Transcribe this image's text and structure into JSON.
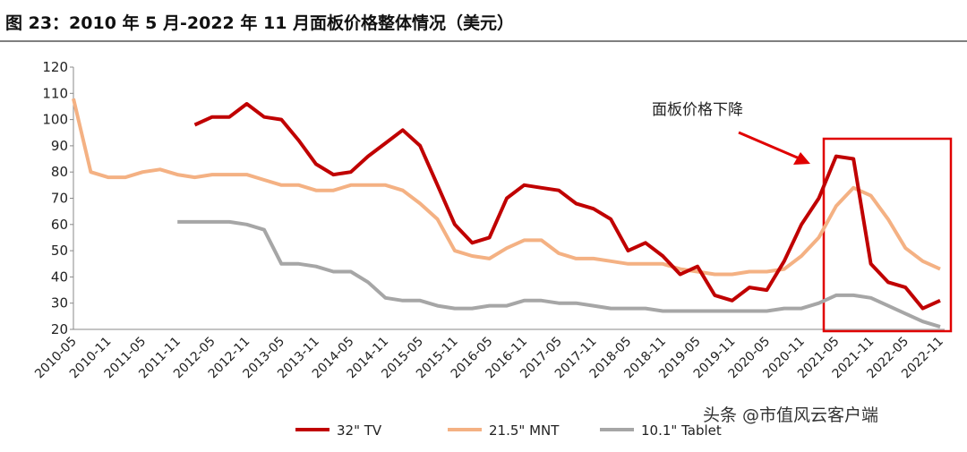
{
  "chart_data": {
    "type": "line",
    "title": "图 23：2010 年 5 月-2022 年 11 月面板价格整体情况（美元）",
    "categories": [
      "2010-05",
      null,
      "2010-11",
      null,
      "2011-05",
      null,
      "2011-11",
      null,
      "2012-05",
      null,
      "2012-11",
      null,
      "2013-05",
      null,
      "2013-11",
      null,
      "2014-05",
      null,
      "2014-11",
      null,
      "2015-05",
      null,
      "2015-11",
      null,
      "2016-05",
      null,
      "2016-11",
      null,
      "2017-05",
      null,
      "2017-11",
      null,
      "2018-05",
      null,
      "2018-11",
      null,
      "2019-05",
      null,
      "2019-11",
      null,
      "2020-05",
      null,
      "2020-11",
      null,
      "2021-05",
      null,
      "2021-11",
      null,
      "2022-05",
      null,
      "2022-11"
    ],
    "series": [
      {
        "name": "32\" TV",
        "color": "#c00000",
        "values": [
          null,
          null,
          null,
          null,
          null,
          null,
          null,
          98,
          101,
          101,
          106,
          101,
          100,
          92,
          83,
          79,
          80,
          86,
          91,
          96,
          90,
          75,
          60,
          53,
          55,
          70,
          75,
          74,
          73,
          68,
          66,
          62,
          50,
          53,
          48,
          41,
          44,
          33,
          31,
          36,
          35,
          46,
          60,
          70,
          86,
          85,
          45,
          38,
          36,
          28,
          31
        ]
      },
      {
        "name": "21.5\" MNT",
        "color": "#f4b183",
        "values": [
          108,
          80,
          78,
          78,
          80,
          81,
          79,
          78,
          79,
          79,
          79,
          77,
          75,
          75,
          73,
          73,
          75,
          75,
          75,
          73,
          68,
          62,
          50,
          48,
          47,
          51,
          54,
          54,
          49,
          47,
          47,
          46,
          45,
          45,
          45,
          43,
          42,
          41,
          41,
          42,
          42,
          43,
          48,
          55,
          67,
          74,
          71,
          62,
          51,
          46,
          43
        ]
      },
      {
        "name": "10.1\" Tablet",
        "color": "#a6a6a6",
        "values": [
          null,
          null,
          null,
          null,
          null,
          null,
          61,
          61,
          61,
          61,
          60,
          58,
          45,
          45,
          44,
          42,
          42,
          38,
          32,
          31,
          31,
          29,
          28,
          28,
          29,
          29,
          31,
          31,
          30,
          30,
          29,
          28,
          28,
          28,
          27,
          27,
          27,
          27,
          27,
          27,
          27,
          28,
          28,
          30,
          33,
          33,
          32,
          29,
          26,
          23,
          21
        ]
      }
    ],
    "ylim": [
      20,
      120
    ],
    "yticks": [
      20,
      30,
      40,
      50,
      60,
      70,
      80,
      90,
      100,
      110,
      120
    ],
    "annotation": "面板价格下降",
    "watermark": "头条 @市值风云客户端"
  }
}
